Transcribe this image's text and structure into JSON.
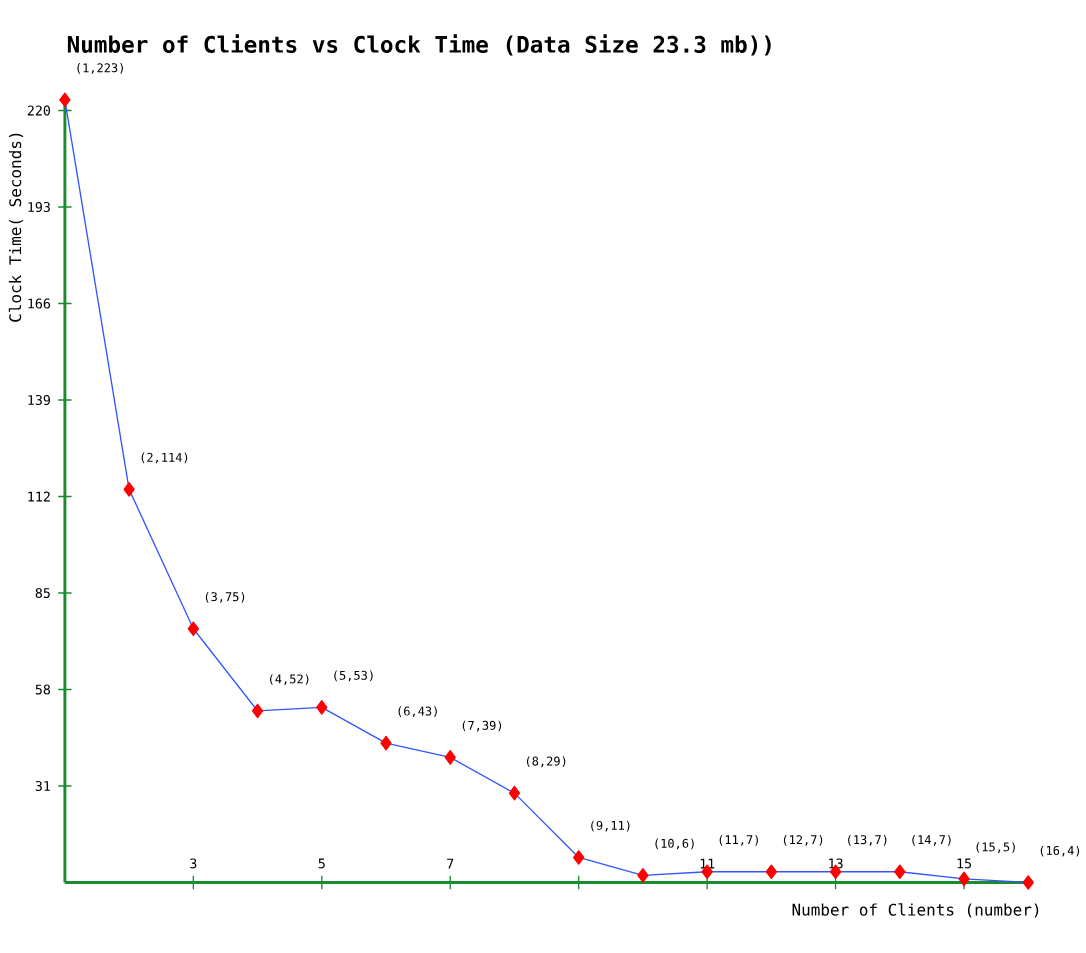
{
  "chart_data": {
    "type": "line",
    "title": "Number of Clients vs Clock Time (Data Size 23.3 mb))",
    "xlabel": "Number of Clients (number)",
    "ylabel": "Clock Time( Seconds)",
    "x": [
      1,
      2,
      3,
      4,
      5,
      6,
      7,
      8,
      9,
      10,
      11,
      12,
      13,
      14,
      15,
      16
    ],
    "values": [
      223,
      114,
      75,
      52,
      53,
      43,
      39,
      29,
      11,
      6,
      7,
      7,
      7,
      7,
      5,
      4
    ],
    "annotations": [
      {
        "text": "(1,223)",
        "x": 1,
        "y": 223
      },
      {
        "text": "(2,114)",
        "x": 2,
        "y": 114
      },
      {
        "text": "(3,75)",
        "x": 3,
        "y": 75
      },
      {
        "text": "(4,52)",
        "x": 4,
        "y": 52
      },
      {
        "text": "(5,53)",
        "x": 5,
        "y": 53
      },
      {
        "text": "(6,43)",
        "x": 6,
        "y": 43
      },
      {
        "text": "(7,39)",
        "x": 7,
        "y": 39
      },
      {
        "text": "(8,29)",
        "x": 8,
        "y": 29
      },
      {
        "text": "(9,11)",
        "x": 9,
        "y": 11
      },
      {
        "text": "(10,6)",
        "x": 10,
        "y": 6
      },
      {
        "text": "(11,7)",
        "x": 11,
        "y": 7
      },
      {
        "text": "(12,7)",
        "x": 12,
        "y": 7
      },
      {
        "text": "(13,7)",
        "x": 13,
        "y": 7
      },
      {
        "text": "(14,7)",
        "x": 14,
        "y": 7
      },
      {
        "text": "(15,5)",
        "x": 15,
        "y": 5
      },
      {
        "text": "(16,4)",
        "x": 16,
        "y": 4
      }
    ],
    "color": "#3355ff",
    "marker": "diamond",
    "line_style": "solid",
    "xlim": [
      1,
      16
    ],
    "ylim": [
      4,
      223
    ],
    "xticks": [
      3,
      5,
      7,
      {
        "value": 9,
        "label": null
      },
      11,
      13,
      15
    ],
    "yticks": [
      31,
      58,
      85,
      112,
      139,
      166,
      193,
      220
    ]
  }
}
